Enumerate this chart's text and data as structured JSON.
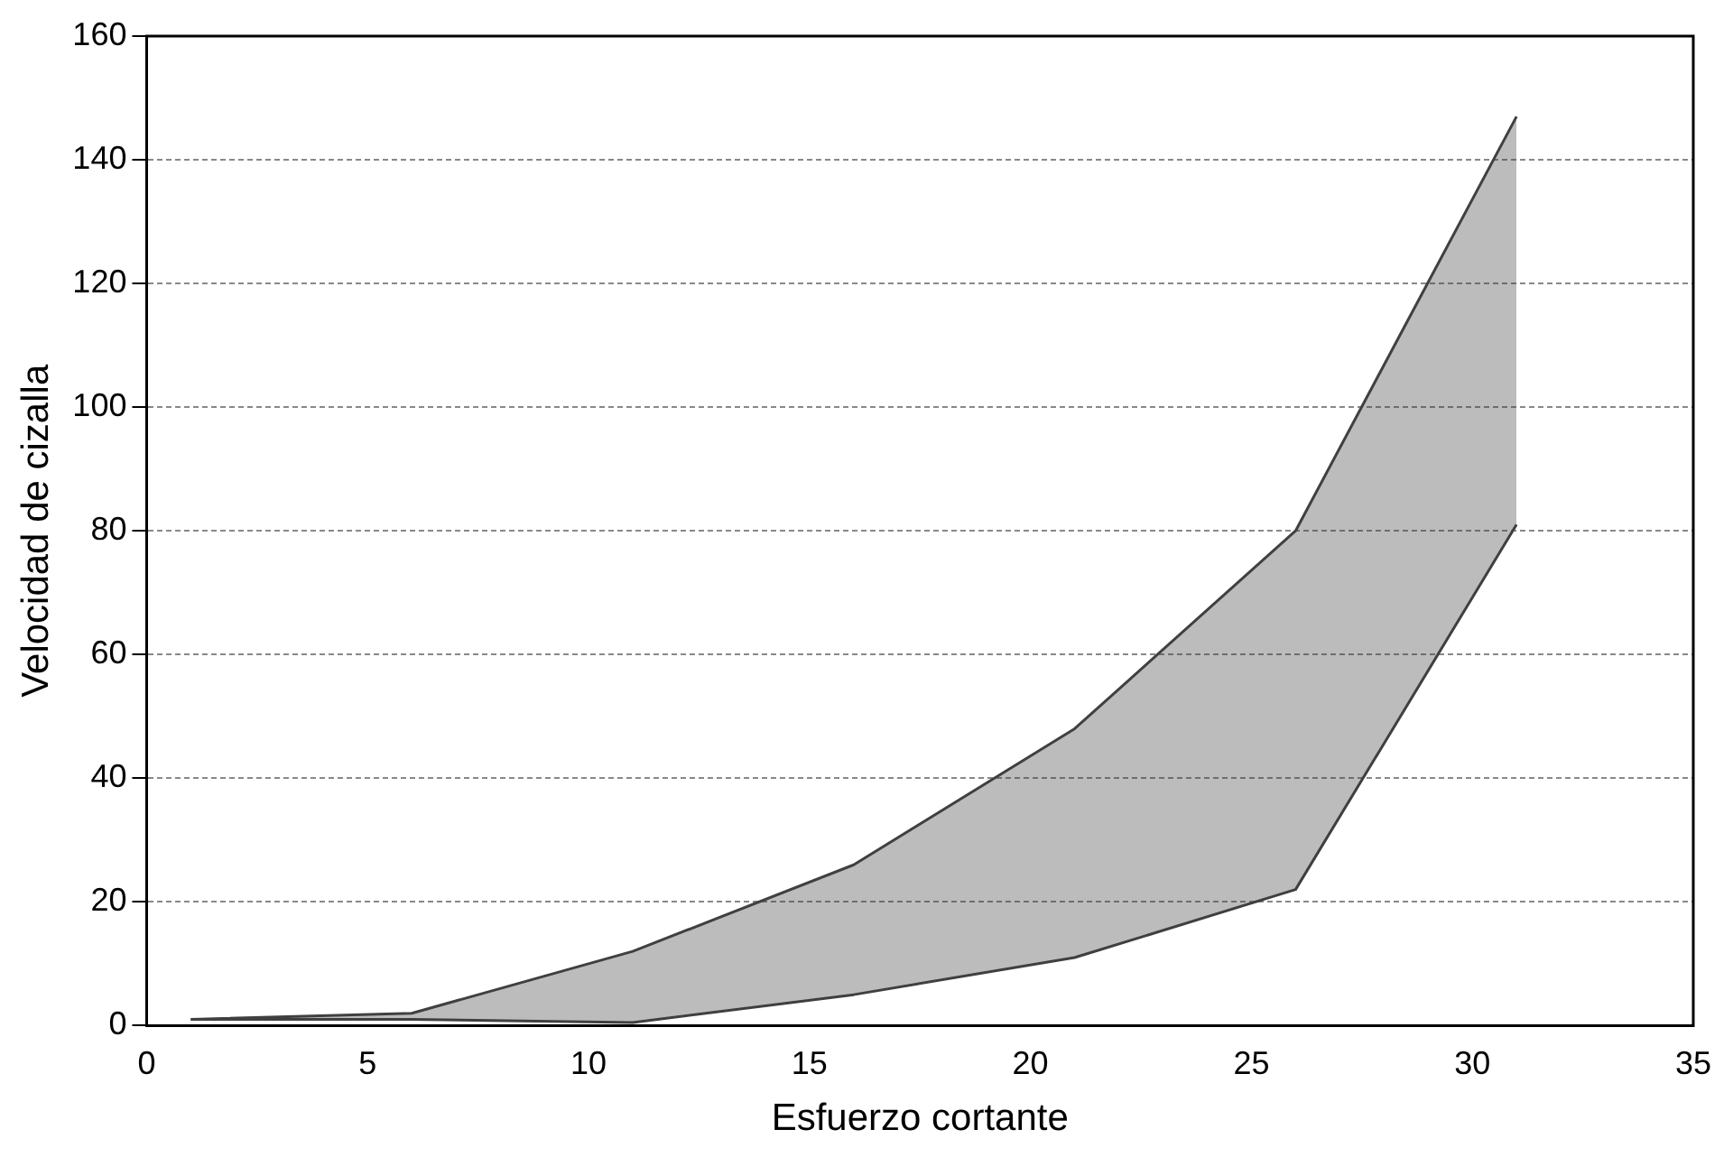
{
  "chart_data": {
    "type": "area",
    "xlabel": "Esfuerzo cortante",
    "ylabel": "Velocidad de cizalla",
    "xlim": [
      0,
      35
    ],
    "xticks": [
      0,
      5,
      10,
      15,
      20,
      25,
      30,
      35
    ],
    "ylim": [
      0,
      160
    ],
    "yticks": [
      0,
      20,
      40,
      60,
      80,
      100,
      120,
      140,
      160
    ],
    "grid": "y",
    "legend": false,
    "marker": "none",
    "series": [
      {
        "color": "#404040",
        "x": [
          1,
          6,
          11,
          16,
          21,
          26,
          31
        ],
        "values": [
          1,
          2,
          12,
          26,
          48,
          80,
          147
        ]
      },
      {
        "type": "line",
        "color": "#404040",
        "x": [
          1,
          6,
          11,
          16,
          21,
          26,
          31
        ],
        "values": [
          1,
          1,
          0.5,
          5,
          11,
          22,
          81
        ]
      }
    ]
  }
}
